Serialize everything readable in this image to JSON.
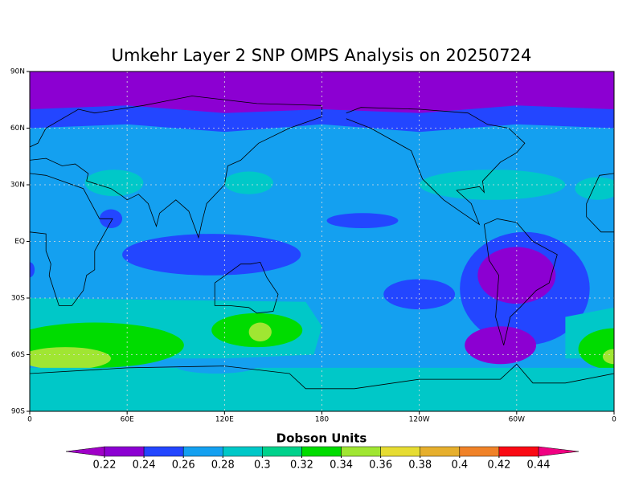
{
  "title": "Umkehr Layer 2 SNP OMPS Analysis on 20250724",
  "map": {
    "lon_ticks": [
      "0",
      "60E",
      "120E",
      "180",
      "120W",
      "60W",
      "0"
    ],
    "lat_ticks": [
      "90N",
      "60N",
      "30N",
      "EQ",
      "30S",
      "60S",
      "90S"
    ]
  },
  "colorbar": {
    "label": "Dobson Units",
    "ticks": [
      0.22,
      0.24,
      0.26,
      0.28,
      0.3,
      0.32,
      0.34,
      0.36,
      0.38,
      0.4,
      0.42,
      0.44
    ],
    "colors": [
      "#8c00d2",
      "#2346ff",
      "#14a0f0",
      "#00c8c8",
      "#00d28c",
      "#00dc00",
      "#a0e632",
      "#e6dc32",
      "#e6af2d",
      "#f08228",
      "#fa0a14"
    ],
    "under_color": "#a000c8",
    "over_color": "#f00082"
  }
}
